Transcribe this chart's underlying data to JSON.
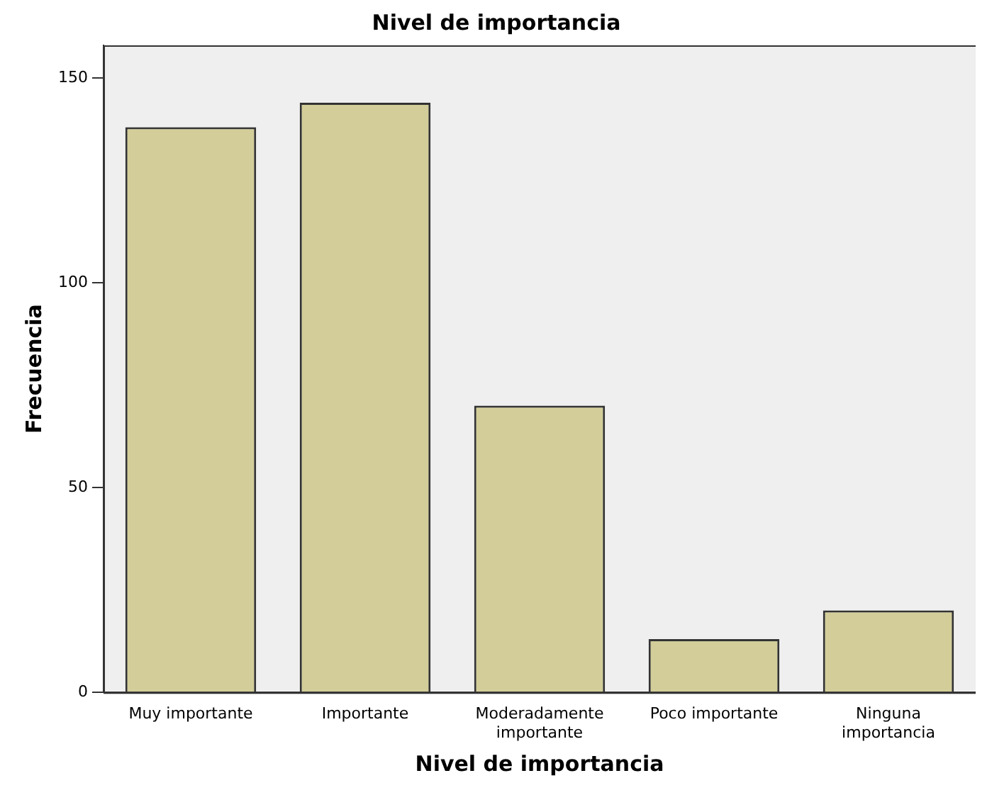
{
  "chart_data": {
    "type": "bar",
    "title": "Nivel de importancia",
    "xlabel": "Nivel de importancia",
    "ylabel": "Frecuencia",
    "categories": [
      "Muy importante",
      "Importante",
      "Moderadamente importante",
      "Poco importante",
      "Ninguna importancia"
    ],
    "values": [
      138,
      144,
      70,
      13,
      20
    ],
    "color": "#d3ce99",
    "ylim": [
      0,
      158
    ],
    "yticks": [
      0,
      50,
      100,
      150
    ],
    "grid": false,
    "legend": false
  }
}
